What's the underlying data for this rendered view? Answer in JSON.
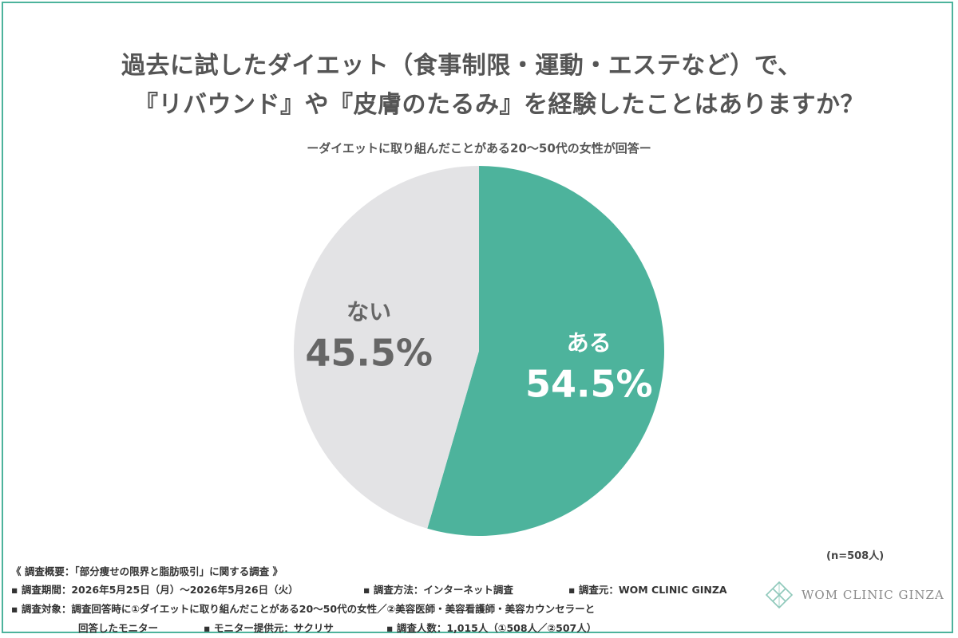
{
  "title_line1": "過去に試したダイエット（食事制限・運動・エステなど）で、",
  "title_line2": "『リバウンド』や『皮膚のたるみ』を経験したことはありますか？",
  "subtitle": "ーダイエットに取り組んだことがある20〜50代の女性が回答ー",
  "chart_data": {
    "type": "pie",
    "title": "過去に試したダイエット（食事制限・運動・エステなど）で、『リバウンド』や『皮膚のたるみ』を経験したことはありますか？",
    "slices": [
      {
        "label": "ある",
        "value": 54.5,
        "display": "54.5%",
        "color": "#4db39c",
        "label_color": "#ffffff"
      },
      {
        "label": "ない",
        "value": 45.5,
        "display": "45.5%",
        "color": "#e3e3e5",
        "label_color": "#666666"
      }
    ],
    "n": "(n=508人)"
  },
  "notes": {
    "overview": "《 調査概要：「部分痩せの限界と脂肪吸引」に関する調査 》",
    "period": "▪ 調査期間：2026年5月25日（月）〜2026年5月26日（火）",
    "method": "▪ 調査方法：インターネット調査",
    "source": "▪ 調査元：WOM CLINIC GINZA",
    "target1": "▪ 調査対象：調査回答時に①ダイエットに取り組んだことがある20〜50代の女性／②美容医師・美容看護師・美容カウンセラーと",
    "target2": "回答したモニター",
    "provider": "▪ モニター提供元：サクリサ",
    "count": "▪ 調査人数：1,015人（①508人／②507人）"
  },
  "logo": {
    "text": "WOM CLINIC GINZA",
    "icon": "diamond-lattice-logo-icon",
    "color": "#8fc9bb"
  }
}
